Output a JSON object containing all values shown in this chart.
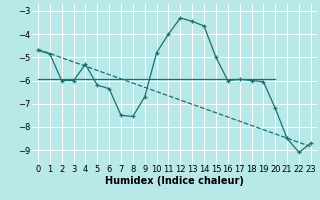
{
  "xlabel": "Humidex (Indice chaleur)",
  "bg_color": "#b8e8e8",
  "line_color": "#1a7070",
  "grid_color": "#d0f0f0",
  "xlim": [
    -0.5,
    23.5
  ],
  "ylim": [
    -9.6,
    -2.7
  ],
  "yticks": [
    -9,
    -8,
    -7,
    -6,
    -5,
    -4,
    -3
  ],
  "xticks": [
    0,
    1,
    2,
    3,
    4,
    5,
    6,
    7,
    8,
    9,
    10,
    11,
    12,
    13,
    14,
    15,
    16,
    17,
    18,
    19,
    20,
    21,
    22,
    23
  ],
  "curve1_x": [
    0,
    1,
    2,
    3,
    4,
    5,
    6,
    7,
    8,
    9,
    10,
    11,
    12,
    13,
    14,
    15,
    16,
    17,
    18,
    19,
    20,
    21,
    22,
    23
  ],
  "curve1_y": [
    -4.7,
    -4.85,
    -6.0,
    -6.0,
    -5.3,
    -6.2,
    -6.35,
    -7.5,
    -7.55,
    -6.7,
    -4.8,
    -4.0,
    -3.3,
    -3.45,
    -3.65,
    -5.0,
    -6.0,
    -5.95,
    -6.0,
    -6.05,
    -7.2,
    -8.5,
    -9.1,
    -8.7
  ],
  "curve2_x": [
    0,
    20
  ],
  "curve2_y": [
    -5.95,
    -5.95
  ],
  "curve3_x": [
    0,
    23
  ],
  "curve3_y": [
    -4.65,
    -8.85
  ],
  "xlabel_fontsize": 7,
  "tick_fontsize": 6
}
